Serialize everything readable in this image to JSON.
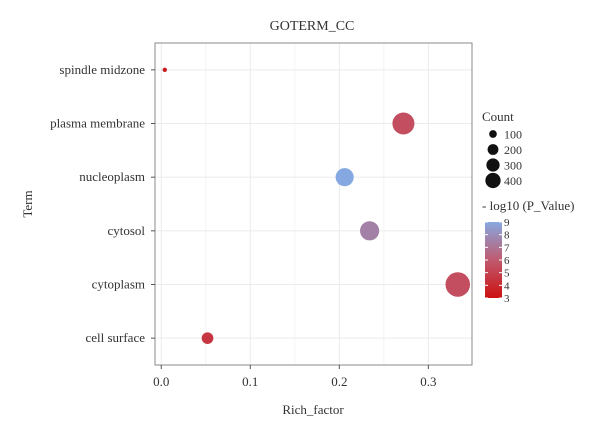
{
  "chart_data": {
    "type": "scatter",
    "title": "GOTERM_CC",
    "xlabel": "Rich_factor",
    "ylabel": "Term",
    "xlim": [
      -0.007,
      0.349
    ],
    "x_ticks": [
      0.0,
      0.1,
      0.2,
      0.3
    ],
    "x_tick_labels": [
      "0.0",
      "0.1",
      "0.2",
      "0.3"
    ],
    "categories": [
      "cell surface",
      "cytoplasm",
      "cytosol",
      "nucleoplasm",
      "plasma membrane",
      "spindle midzone"
    ],
    "grid": true,
    "points": [
      {
        "term": "spindle midzone",
        "x": 0.004,
        "count": 10,
        "neg_log10_p": 3.5
      },
      {
        "term": "plasma membrane",
        "x": 0.272,
        "count": 250,
        "neg_log10_p": 5.5
      },
      {
        "term": "nucleoplasm",
        "x": 0.206,
        "count": 170,
        "neg_log10_p": 9.0
      },
      {
        "term": "cytosol",
        "x": 0.234,
        "count": 190,
        "neg_log10_p": 7.5
      },
      {
        "term": "cytoplasm",
        "x": 0.333,
        "count": 310,
        "neg_log10_p": 5.5
      },
      {
        "term": "cell surface",
        "x": 0.052,
        "count": 70,
        "neg_log10_p": 4.5
      }
    ],
    "size_legend": {
      "title": "Count",
      "values": [
        100,
        200,
        300,
        400
      ],
      "labels": [
        "100",
        "200",
        "300",
        "400"
      ]
    },
    "color_legend": {
      "title": "- log10 (P_Value)",
      "min": 3,
      "max": 9,
      "ticks": [
        9,
        8,
        7,
        6,
        5,
        4,
        3
      ],
      "tick_labels": [
        "9",
        "8",
        "7",
        "6",
        "5",
        "4",
        "3"
      ],
      "low_color": "#cc1111",
      "high_color": "#86a8e0"
    },
    "colors": {
      "panel_border": "#888888",
      "grid": "#ebebeb",
      "text": "#333333"
    }
  }
}
